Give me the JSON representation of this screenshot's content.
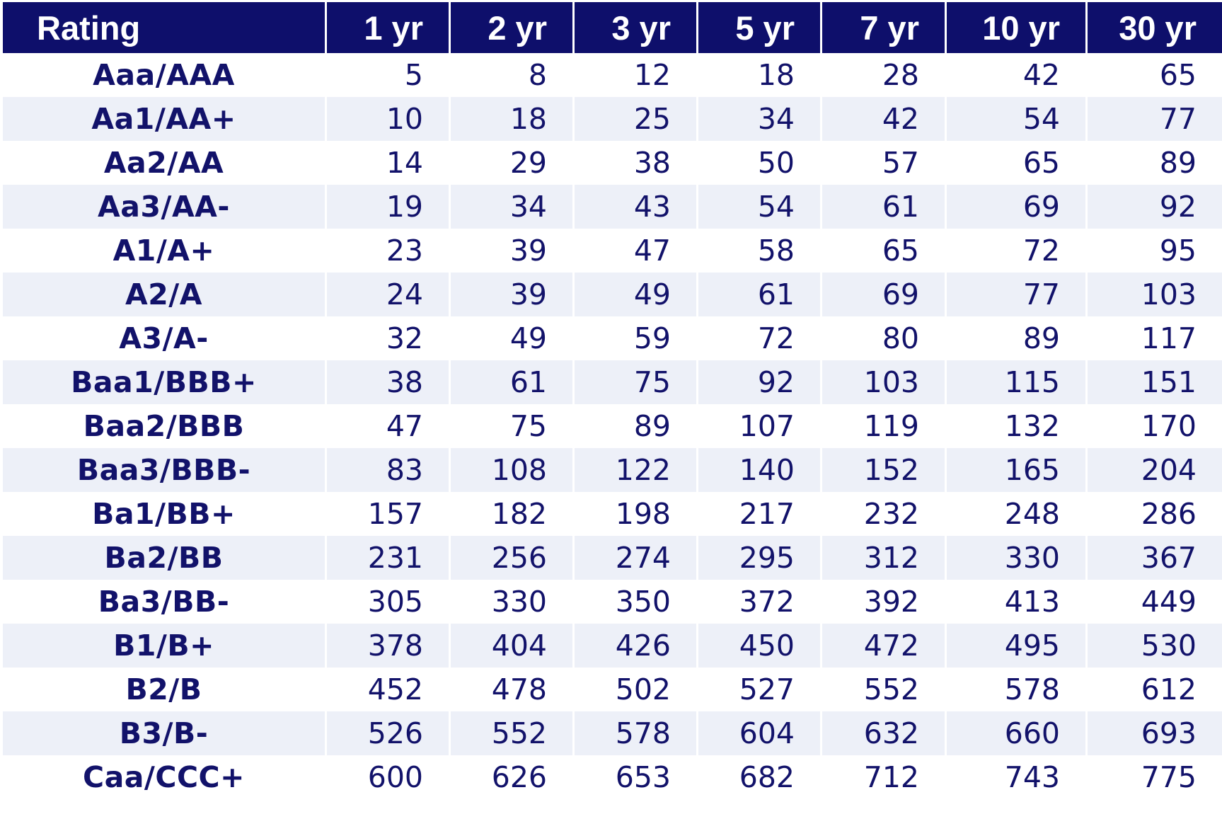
{
  "table": {
    "headers": [
      "Rating",
      "1 yr",
      "2 yr",
      "3 yr",
      "5 yr",
      "7 yr",
      "10 yr",
      "30 yr"
    ],
    "rows": [
      {
        "rating": "Aaa/AAA",
        "values": [
          "5",
          "8",
          "12",
          "18",
          "28",
          "42",
          "65"
        ]
      },
      {
        "rating": "Aa1/AA+",
        "values": [
          "10",
          "18",
          "25",
          "34",
          "42",
          "54",
          "77"
        ]
      },
      {
        "rating": "Aa2/AA",
        "values": [
          "14",
          "29",
          "38",
          "50",
          "57",
          "65",
          "89"
        ]
      },
      {
        "rating": "Aa3/AA-",
        "values": [
          "19",
          "34",
          "43",
          "54",
          "61",
          "69",
          "92"
        ]
      },
      {
        "rating": "A1/A+",
        "values": [
          "23",
          "39",
          "47",
          "58",
          "65",
          "72",
          "95"
        ]
      },
      {
        "rating": "A2/A",
        "values": [
          "24",
          "39",
          "49",
          "61",
          "69",
          "77",
          "103"
        ]
      },
      {
        "rating": "A3/A-",
        "values": [
          "32",
          "49",
          "59",
          "72",
          "80",
          "89",
          "117"
        ]
      },
      {
        "rating": "Baa1/BBB+",
        "values": [
          "38",
          "61",
          "75",
          "92",
          "103",
          "115",
          "151"
        ]
      },
      {
        "rating": "Baa2/BBB",
        "values": [
          "47",
          "75",
          "89",
          "107",
          "119",
          "132",
          "170"
        ]
      },
      {
        "rating": "Baa3/BBB-",
        "values": [
          "83",
          "108",
          "122",
          "140",
          "152",
          "165",
          "204"
        ]
      },
      {
        "rating": "Ba1/BB+",
        "values": [
          "157",
          "182",
          "198",
          "217",
          "232",
          "248",
          "286"
        ]
      },
      {
        "rating": "Ba2/BB",
        "values": [
          "231",
          "256",
          "274",
          "295",
          "312",
          "330",
          "367"
        ]
      },
      {
        "rating": "Ba3/BB-",
        "values": [
          "305",
          "330",
          "350",
          "372",
          "392",
          "413",
          "449"
        ]
      },
      {
        "rating": "B1/B+",
        "values": [
          "378",
          "404",
          "426",
          "450",
          "472",
          "495",
          "530"
        ]
      },
      {
        "rating": "B2/B",
        "values": [
          "452",
          "478",
          "502",
          "527",
          "552",
          "578",
          "612"
        ]
      },
      {
        "rating": "B3/B-",
        "values": [
          "526",
          "552",
          "578",
          "604",
          "632",
          "660",
          "693"
        ]
      },
      {
        "rating": "Caa/CCC+",
        "values": [
          "600",
          "626",
          "653",
          "682",
          "712",
          "743",
          "775"
        ]
      }
    ]
  },
  "colors": {
    "header_background": "#0e0f6b",
    "header_text": "#ffffff",
    "body_text": "#12126a",
    "stripe_background": "#edf0f8"
  }
}
